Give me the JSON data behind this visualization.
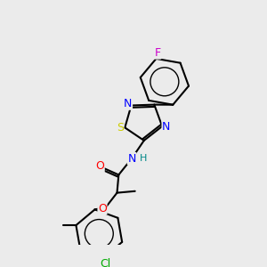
{
  "background_color": "#ebebeb",
  "bond_color": "#000000",
  "atom_colors": {
    "F": "#cc00cc",
    "N": "#0000ff",
    "S": "#cccc00",
    "O": "#ff0000",
    "Cl": "#00aa00",
    "C": "#000000",
    "H": "#008888"
  },
  "font_size": 9,
  "fig_size": [
    3.0,
    3.0
  ],
  "dpi": 100
}
